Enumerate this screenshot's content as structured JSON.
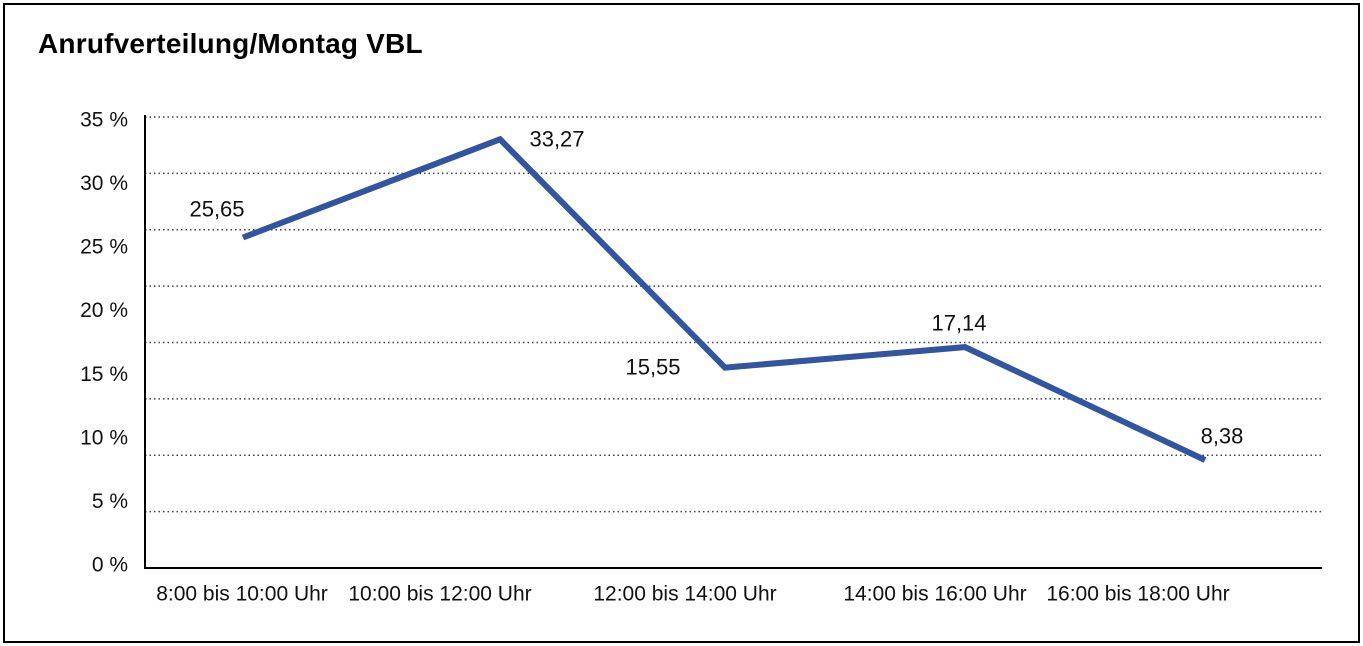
{
  "chart": {
    "title": "Anrufverteilung/Montag VBL"
  },
  "chart_data": {
    "type": "line",
    "title": "Anrufverteilung/Montag VBL",
    "categories": [
      "8:00 bis 10:00 Uhr",
      "10:00 bis 12:00 Uhr",
      "12:00 bis 14:00 Uhr",
      "14:00 bis 16:00 Uhr",
      "16:00 bis 18:00 Uhr"
    ],
    "values": [
      25.65,
      33.27,
      15.55,
      17.14,
      8.38
    ],
    "value_labels": [
      "25,65",
      "33,27",
      "15,55",
      "17,14",
      "8,38"
    ],
    "y_ticks": [
      {
        "value": 35,
        "label": "35 %"
      },
      {
        "value": 30,
        "label": "30 %"
      },
      {
        "value": 25,
        "label": "25 %"
      },
      {
        "value": 20,
        "label": "20 %"
      },
      {
        "value": 15,
        "label": "15 %"
      },
      {
        "value": 10,
        "label": "10 %"
      },
      {
        "value": 5,
        "label": "5 %"
      },
      {
        "value": 0,
        "label": "0 %"
      }
    ],
    "ylim": [
      0,
      35
    ],
    "xlabel": "",
    "ylabel": "",
    "grid": "horizontal-dotted",
    "legend": "none",
    "line_color": "#3355a0",
    "axis_color": "#000000",
    "gridline_color": "#444444",
    "text_color": "#111111"
  }
}
